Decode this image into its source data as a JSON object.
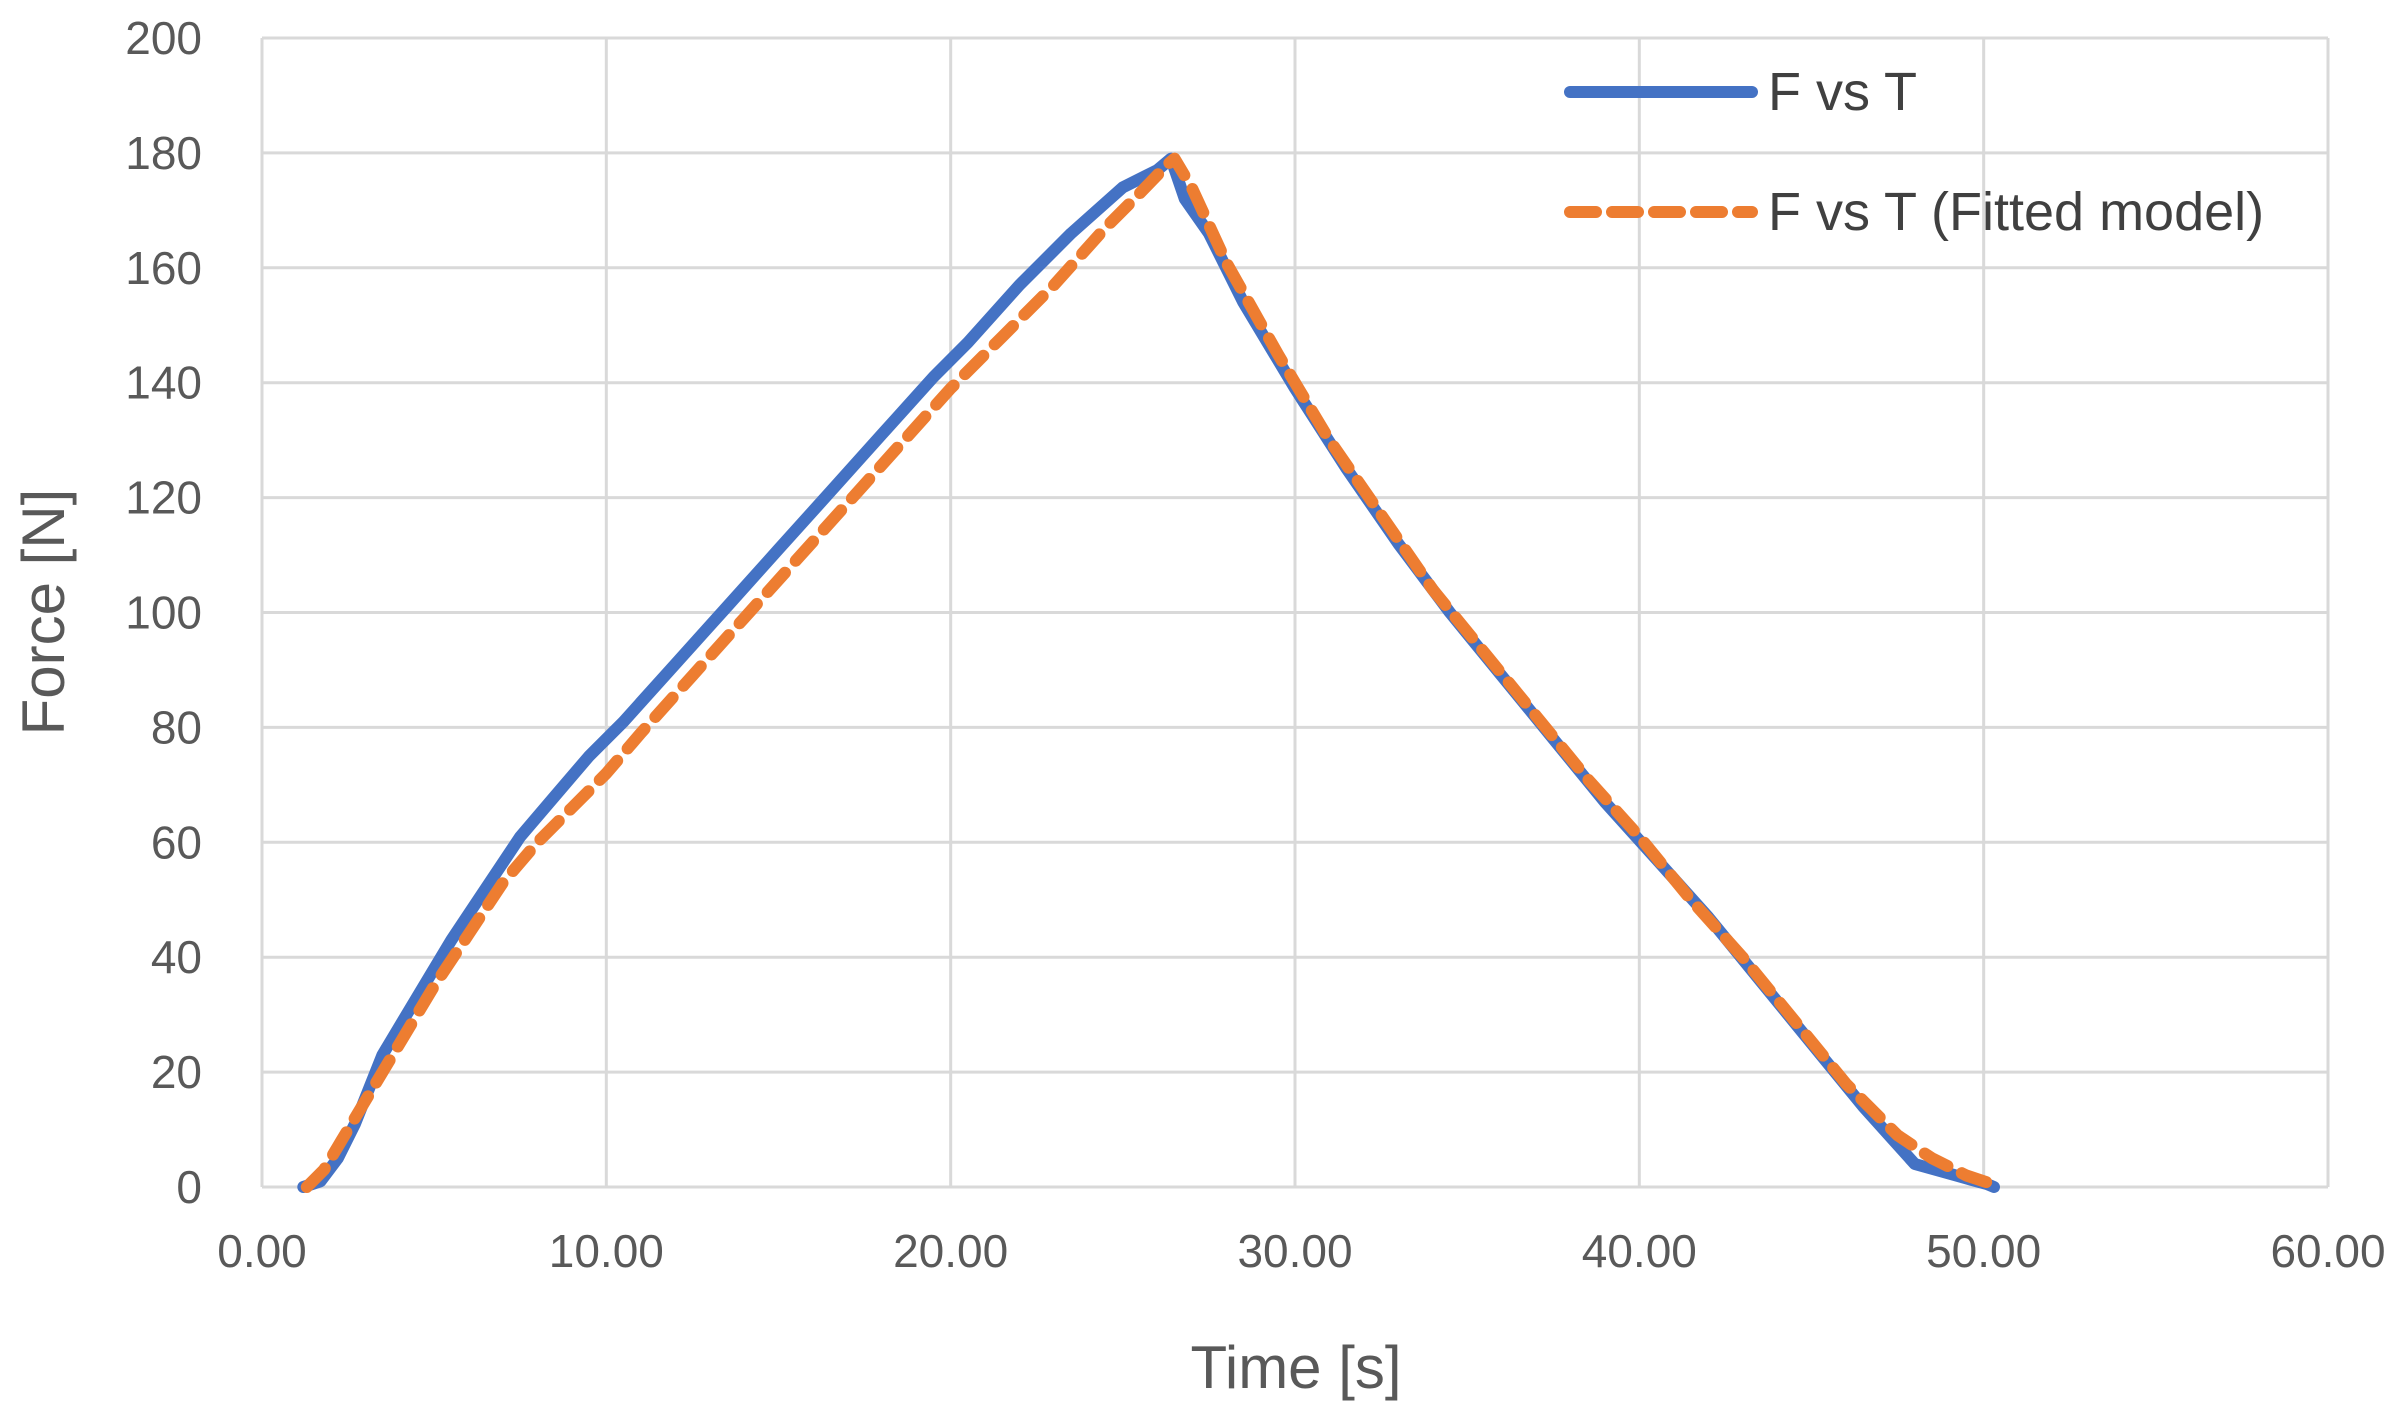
{
  "chart_data": {
    "type": "line",
    "title": "",
    "xlabel": "Time [s]",
    "ylabel": "Force [N]",
    "xlim": [
      0,
      60
    ],
    "ylim": [
      0,
      200
    ],
    "xticks": [
      0,
      10,
      20,
      30,
      40,
      50,
      60
    ],
    "yticks": [
      0,
      20,
      40,
      60,
      80,
      100,
      120,
      140,
      160,
      180,
      200
    ],
    "xtick_labels": [
      "0.00",
      "10.00",
      "20.00",
      "30.00",
      "40.00",
      "50.00",
      "60.00"
    ],
    "ytick_labels": [
      "0",
      "20",
      "40",
      "60",
      "80",
      "100",
      "120",
      "140",
      "160",
      "180",
      "200"
    ],
    "grid": true,
    "legend_position": "top-right",
    "series": [
      {
        "name": "F vs T",
        "color": "#4472C4",
        "style": "solid",
        "x": [
          1.2,
          1.7,
          2.2,
          2.7,
          3.5,
          4.5,
          5.5,
          6.5,
          7.5,
          8.5,
          9.5,
          10.5,
          12,
          13.5,
          15,
          16.5,
          18,
          19.5,
          20.5,
          22,
          23.5,
          25,
          26,
          26.4,
          26.8,
          27.5,
          28.5,
          30,
          31.5,
          33,
          34.5,
          36,
          37.5,
          39,
          40.5,
          42,
          43.5,
          45,
          46.5,
          48,
          49.2,
          49.8,
          50.1,
          50.3
        ],
        "y": [
          0,
          1,
          5,
          11,
          23,
          33,
          43,
          52,
          61,
          68,
          75,
          81,
          91,
          101,
          111,
          121,
          131,
          141,
          147,
          157,
          166,
          174,
          177,
          179,
          172,
          166,
          154,
          139,
          125,
          112,
          100,
          89,
          78,
          67,
          57,
          47,
          36,
          25,
          14,
          4,
          2,
          1,
          0.5,
          0
        ]
      },
      {
        "name": "F vs T (Fitted model)",
        "color": "#ED7D31",
        "style": "dashed",
        "x": [
          1.3,
          1.8,
          2.3,
          3,
          4,
          5,
          6,
          7,
          8,
          9,
          10,
          11,
          12.5,
          14,
          15.5,
          17,
          18.5,
          20,
          21.5,
          23,
          24.5,
          25.5,
          26.3,
          26.5,
          27,
          28,
          29.5,
          31,
          32.5,
          34,
          35.5,
          37,
          38.5,
          40,
          41.5,
          43,
          44.5,
          46,
          47.5,
          48.5,
          49.5,
          50.1,
          50.3
        ],
        "y": [
          0,
          3,
          8,
          15,
          25,
          35,
          44,
          53,
          60,
          66,
          72,
          79,
          89,
          99,
          109,
          119,
          129,
          139,
          148,
          157,
          167,
          173,
          178,
          179,
          174,
          161,
          145,
          130,
          117,
          104,
          93,
          82,
          71,
          61,
          50,
          40,
          29,
          18,
          9,
          5,
          2,
          0.8,
          0
        ]
      }
    ]
  }
}
